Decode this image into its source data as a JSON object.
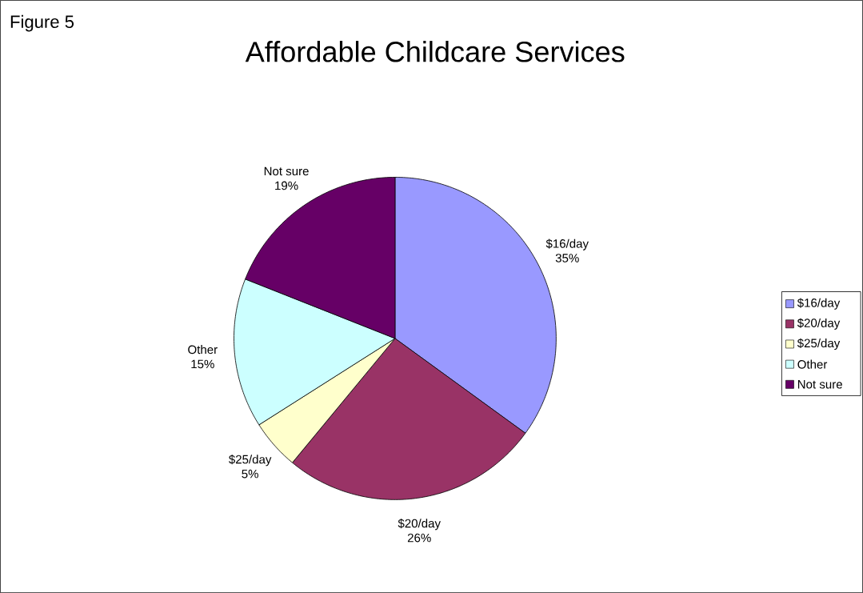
{
  "chart_data": {
    "type": "pie",
    "title": "Affordable Childcare Services",
    "annotations": [
      "Figure 5"
    ],
    "categories": [
      "$16/day",
      "$20/day",
      "$25/day",
      "Other",
      "Not sure"
    ],
    "values": [
      35,
      26,
      5,
      15,
      19
    ],
    "value_labels": [
      "35%",
      "26%",
      "5%",
      "15%",
      "19%"
    ],
    "colors": [
      "#9999ff",
      "#993366",
      "#ffffcc",
      "#ccffff",
      "#660066"
    ],
    "legend": "right"
  }
}
